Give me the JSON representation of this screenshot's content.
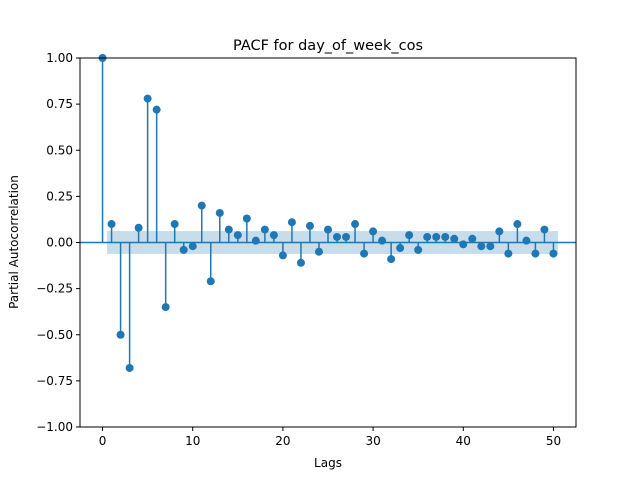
{
  "chart_data": {
    "type": "stem",
    "title": "PACF for day_of_week_cos",
    "xlabel": "Lags",
    "ylabel": "Partial Autocorrelation",
    "xlim": [
      -2.5,
      52.5
    ],
    "ylim": [
      -1.0,
      1.0
    ],
    "xticks": [
      0,
      10,
      20,
      30,
      40,
      50
    ],
    "yticks": [
      -1.0,
      -0.75,
      -0.5,
      -0.25,
      0.0,
      0.25,
      0.5,
      0.75,
      1.0
    ],
    "ytick_labels": [
      "−1.00",
      "−0.75",
      "−0.50",
      "−0.25",
      "0.00",
      "0.25",
      "0.50",
      "0.75",
      "1.00"
    ],
    "xtick_labels": [
      "0",
      "10",
      "20",
      "30",
      "40",
      "50"
    ],
    "confidence_band": 0.062,
    "grid": false,
    "colors": {
      "stem": "#1f77b4",
      "band": "#1f77b4",
      "baseline": "#1f77b4"
    },
    "x": [
      0,
      1,
      2,
      3,
      4,
      5,
      6,
      7,
      8,
      9,
      10,
      11,
      12,
      13,
      14,
      15,
      16,
      17,
      18,
      19,
      20,
      21,
      22,
      23,
      24,
      25,
      26,
      27,
      28,
      29,
      30,
      31,
      32,
      33,
      34,
      35,
      36,
      37,
      38,
      39,
      40,
      41,
      42,
      43,
      44,
      45,
      46,
      47,
      48,
      49,
      50
    ],
    "values": [
      1.0,
      0.1,
      -0.5,
      -0.68,
      0.08,
      0.78,
      0.72,
      -0.35,
      0.1,
      -0.04,
      -0.02,
      0.2,
      -0.21,
      0.16,
      0.07,
      0.04,
      0.13,
      0.01,
      0.07,
      0.04,
      -0.07,
      0.11,
      -0.11,
      0.09,
      -0.05,
      0.07,
      0.03,
      0.03,
      0.1,
      -0.06,
      0.06,
      0.01,
      -0.09,
      -0.03,
      0.04,
      -0.04,
      0.03,
      0.03,
      0.03,
      0.02,
      -0.01,
      0.02,
      -0.02,
      -0.02,
      0.06,
      -0.06,
      0.1,
      0.01,
      -0.06,
      0.07,
      -0.06
    ]
  }
}
